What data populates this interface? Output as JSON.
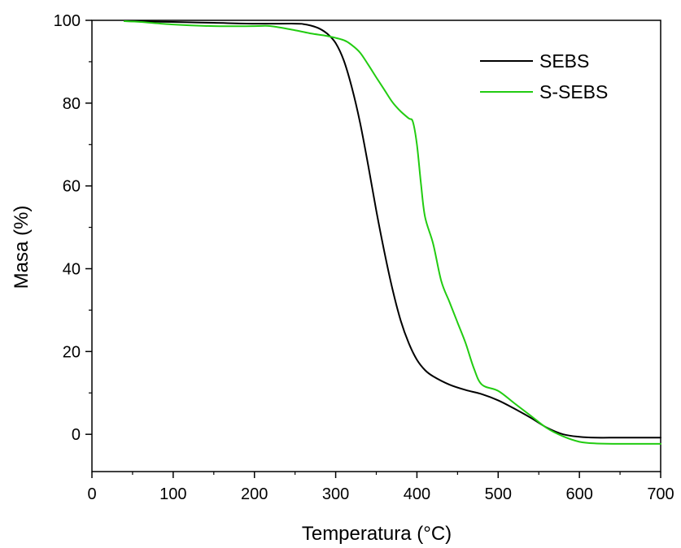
{
  "chart_data": {
    "type": "line",
    "title": "",
    "xlabel": "Temperatura (°C)",
    "ylabel": "Masa (%)",
    "xlim": [
      0,
      700
    ],
    "ylim": [
      -9,
      100
    ],
    "xticks": [
      0,
      100,
      200,
      300,
      400,
      500,
      600,
      700
    ],
    "yticks": [
      0,
      20,
      40,
      60,
      80,
      100
    ],
    "grid": false,
    "legend_position": "top-right",
    "series": [
      {
        "name": "SEBS",
        "color": "#000000",
        "x": [
          40,
          100,
          150,
          200,
          250,
          260,
          270,
          280,
          290,
          300,
          310,
          320,
          330,
          340,
          350,
          360,
          370,
          380,
          390,
          400,
          410,
          420,
          440,
          460,
          480,
          500,
          520,
          540,
          560,
          580,
          600,
          620,
          650,
          700
        ],
        "y": [
          99.8,
          99.6,
          99.4,
          99.2,
          99.2,
          99.1,
          98.7,
          98.0,
          96.7,
          94.5,
          90.3,
          83.7,
          75.3,
          65.0,
          54.0,
          44.0,
          35.0,
          27.5,
          22.0,
          18.0,
          15.5,
          14.0,
          12.0,
          10.7,
          9.7,
          8.2,
          6.2,
          4.0,
          1.6,
          0.0,
          -0.6,
          -0.8,
          -0.8,
          -0.8
        ]
      },
      {
        "name": "S-SEBS",
        "color": "#22cc11",
        "x": [
          40,
          60,
          100,
          150,
          200,
          220,
          250,
          270,
          290,
          310,
          320,
          330,
          340,
          350,
          360,
          370,
          380,
          390,
          395,
          400,
          405,
          410,
          420,
          430,
          440,
          450,
          460,
          470,
          480,
          500,
          520,
          540,
          560,
          580,
          600,
          620,
          650,
          700
        ],
        "y": [
          99.8,
          99.6,
          99.0,
          98.6,
          98.6,
          98.6,
          97.6,
          96.8,
          96.2,
          95.2,
          94.0,
          92.2,
          89.3,
          86.2,
          83.2,
          80.2,
          78.0,
          76.3,
          75.5,
          70.0,
          60.5,
          52.5,
          46.0,
          37.0,
          32.0,
          27.0,
          22.0,
          16.0,
          12.0,
          10.5,
          7.5,
          4.5,
          1.5,
          -0.5,
          -1.8,
          -2.2,
          -2.3,
          -2.3
        ]
      }
    ]
  }
}
